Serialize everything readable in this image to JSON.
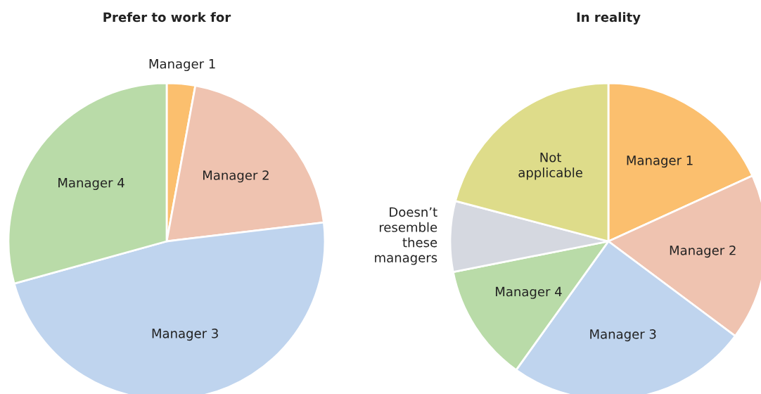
{
  "chart_data": [
    {
      "type": "pie",
      "title": "Prefer to work for",
      "categories": [
        "Manager 1",
        "Manager 2",
        "Manager 3",
        "Manager 4"
      ],
      "values": [
        2.9,
        20.2,
        47.6,
        29.3
      ],
      "colors": [
        "#fbbf6e",
        "#efc3b0",
        "#bfd4ee",
        "#b9dba8"
      ]
    },
    {
      "type": "pie",
      "title": "In reality",
      "categories": [
        "Manager 1",
        "Manager 2",
        "Manager 3",
        "Manager 4",
        "Doesn’t resemble these managers",
        "Not applicable"
      ],
      "values": [
        18.2,
        17.0,
        24.7,
        12.0,
        7.2,
        20.9
      ],
      "colors": [
        "#fbbf6e",
        "#efc3b0",
        "#bfd4ee",
        "#b9dba8",
        "#d5d8e0",
        "#dedc8a"
      ]
    }
  ]
}
